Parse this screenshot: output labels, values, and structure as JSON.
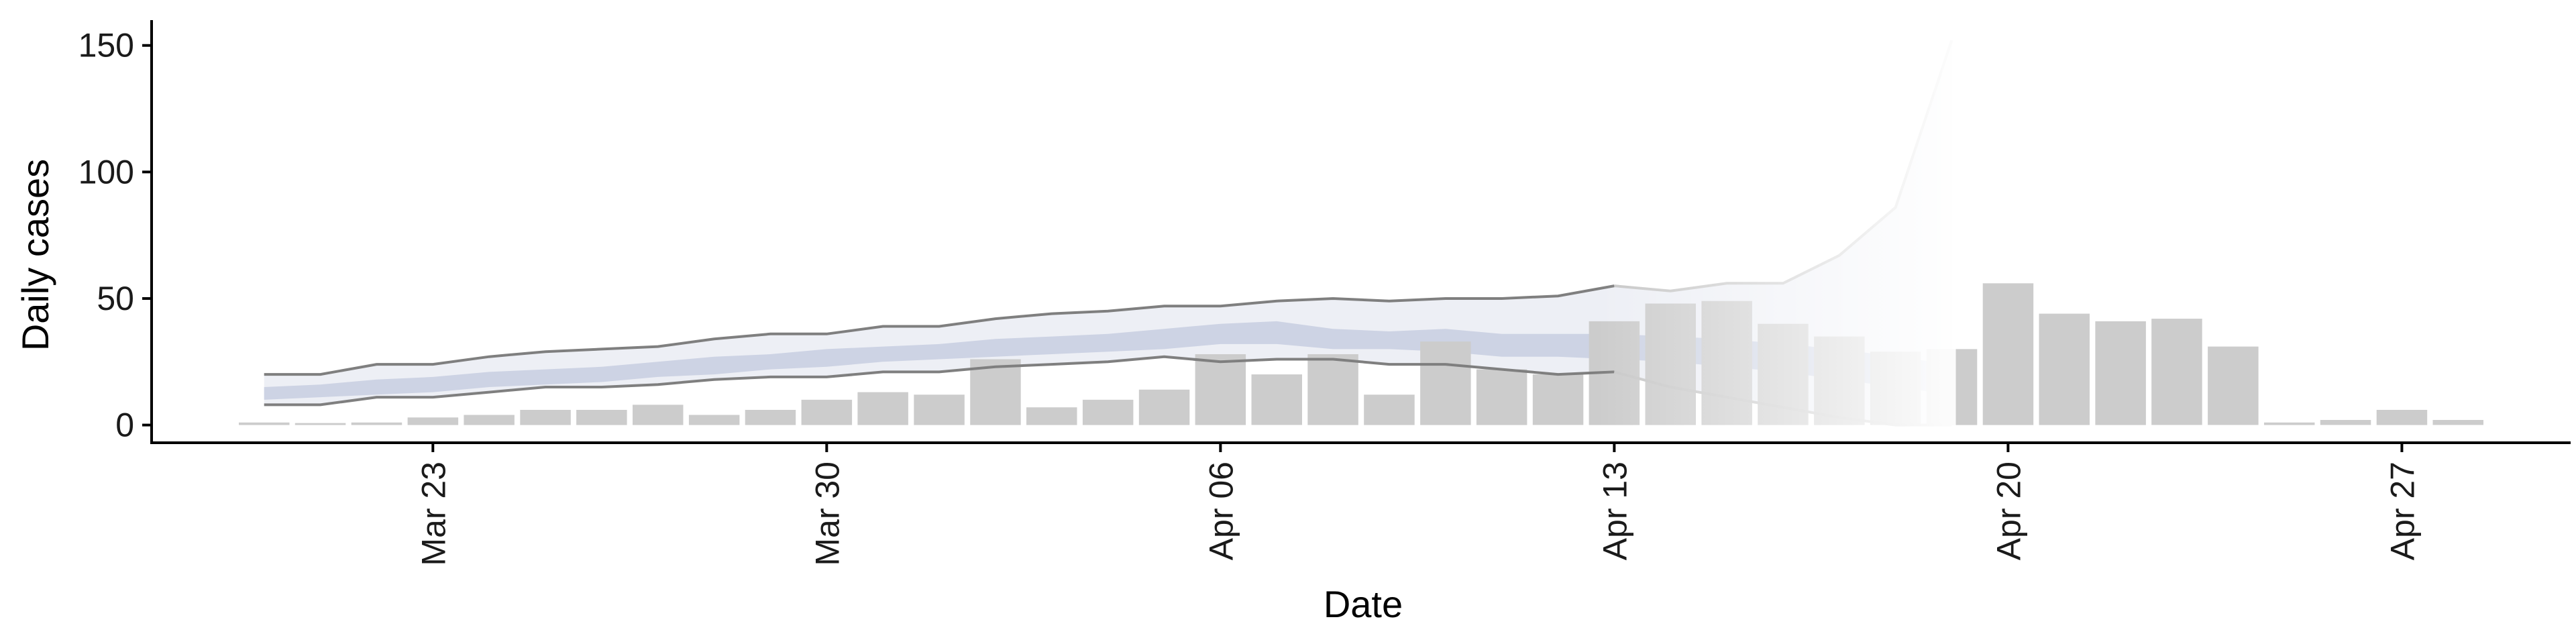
{
  "chart_data": {
    "type": "bar",
    "xlabel": "Date",
    "ylabel": "Daily cases",
    "ylim": [
      -7,
      160
    ],
    "yticks": [
      0,
      50,
      100,
      150
    ],
    "xlim": [
      "2020-03-18",
      "2020-04-30"
    ],
    "xticks": [
      {
        "date": "2020-03-23",
        "label": "Mar 23"
      },
      {
        "date": "2020-03-30",
        "label": "Mar 30"
      },
      {
        "date": "2020-04-06",
        "label": "Apr 06"
      },
      {
        "date": "2020-04-13",
        "label": "Apr 13"
      },
      {
        "date": "2020-04-20",
        "label": "Apr 20"
      },
      {
        "date": "2020-04-27",
        "label": "Apr 27"
      }
    ],
    "grid": false,
    "colors": {
      "bars": "#cccccc",
      "band": "#d5dae8",
      "inner_band": "#b7c0d9",
      "outer_lines": "#7f7f7f",
      "faded_lines": "#c8c8c8",
      "axis": "#000000"
    },
    "bars": {
      "dates": [
        "2020-03-20",
        "2020-03-21",
        "2020-03-22",
        "2020-03-23",
        "2020-03-24",
        "2020-03-25",
        "2020-03-26",
        "2020-03-27",
        "2020-03-28",
        "2020-03-29",
        "2020-03-30",
        "2020-03-31",
        "2020-04-01",
        "2020-04-02",
        "2020-04-03",
        "2020-04-04",
        "2020-04-05",
        "2020-04-06",
        "2020-04-07",
        "2020-04-08",
        "2020-04-09",
        "2020-04-10",
        "2020-04-11",
        "2020-04-12",
        "2020-04-13",
        "2020-04-14",
        "2020-04-15",
        "2020-04-16",
        "2020-04-17",
        "2020-04-18",
        "2020-04-19",
        "2020-04-20",
        "2020-04-21",
        "2020-04-22",
        "2020-04-23",
        "2020-04-24",
        "2020-04-25",
        "2020-04-26",
        "2020-04-27",
        "2020-04-28"
      ],
      "values": [
        1,
        0,
        1,
        3,
        4,
        6,
        6,
        8,
        4,
        6,
        10,
        13,
        12,
        26,
        7,
        10,
        14,
        28,
        20,
        28,
        12,
        33,
        22,
        20,
        41,
        48,
        49,
        40,
        35,
        29,
        30,
        56,
        44,
        41,
        42,
        31,
        1,
        2,
        6,
        2
      ]
    },
    "estimate": {
      "dates": [
        "2020-03-20",
        "2020-03-21",
        "2020-03-22",
        "2020-03-23",
        "2020-03-24",
        "2020-03-25",
        "2020-03-26",
        "2020-03-27",
        "2020-03-28",
        "2020-03-29",
        "2020-03-30",
        "2020-03-31",
        "2020-04-01",
        "2020-04-02",
        "2020-04-03",
        "2020-04-04",
        "2020-04-05",
        "2020-04-06",
        "2020-04-07",
        "2020-04-08",
        "2020-04-09",
        "2020-04-10",
        "2020-04-11",
        "2020-04-12",
        "2020-04-13",
        "2020-04-14",
        "2020-04-15",
        "2020-04-16",
        "2020-04-17",
        "2020-04-18",
        "2020-04-19"
      ],
      "upper": [
        20,
        20,
        24,
        24,
        27,
        29,
        30,
        31,
        34,
        36,
        36,
        39,
        39,
        42,
        44,
        45,
        47,
        47,
        49,
        50,
        49,
        50,
        50,
        51,
        55,
        53,
        56,
        56,
        67,
        86,
        152
      ],
      "lower": [
        8,
        8,
        11,
        11,
        13,
        15,
        15,
        16,
        18,
        19,
        19,
        21,
        21,
        23,
        24,
        25,
        27,
        25,
        26,
        26,
        24,
        24,
        22,
        20,
        21,
        15,
        11,
        7,
        3,
        0,
        0
      ],
      "inner_upper": [
        15,
        16,
        18,
        19,
        21,
        22,
        23,
        25,
        27,
        28,
        30,
        31,
        32,
        34,
        35,
        36,
        38,
        40,
        41,
        38,
        37,
        38,
        36,
        36,
        36,
        35,
        34,
        32,
        30,
        27,
        24
      ],
      "inner_lower": [
        10,
        11,
        12,
        13,
        15,
        16,
        17,
        19,
        20,
        22,
        23,
        25,
        26,
        27,
        28,
        29,
        30,
        32,
        32,
        30,
        30,
        29,
        27,
        27,
        26,
        25,
        23,
        21,
        18,
        15,
        12
      ],
      "faded_from": "2020-04-13"
    }
  }
}
